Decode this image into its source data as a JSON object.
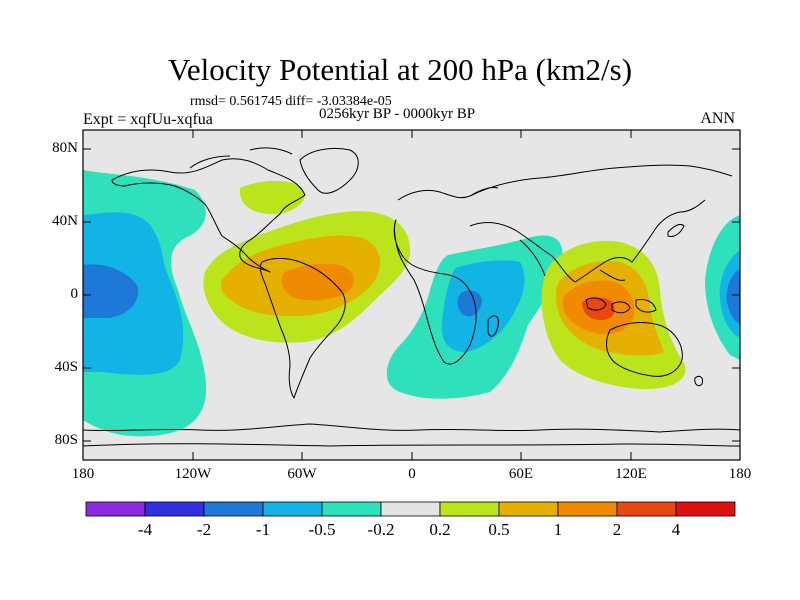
{
  "title": "Velocity Potential at 200 hPa (km2/s)",
  "stats_line": "rmsd= 0.561745 diff= -3.03384e-05",
  "experiment": "Expt = xqfUu-xqfua",
  "period": "0256kyr BP - 0000kyr BP",
  "season": "ANN",
  "y_axis_labels": [
    "80N",
    "40N",
    "0",
    "40S",
    "80S"
  ],
  "x_axis_labels": [
    "180",
    "120W",
    "60W",
    "0",
    "60E",
    "120E",
    "180"
  ],
  "colorbar": {
    "labels": [
      "-4",
      "-2",
      "-1",
      "-0.5",
      "-0.2",
      "0.2",
      "0.5",
      "1",
      "2",
      "4"
    ],
    "colors": [
      "#8a2be2",
      "#3030e0",
      "#1e78d8",
      "#12b4e6",
      "#2ee0bc",
      "#e4e4e4",
      "#bce41c",
      "#e6b000",
      "#f08a00",
      "#e84810",
      "#e01010"
    ]
  }
}
